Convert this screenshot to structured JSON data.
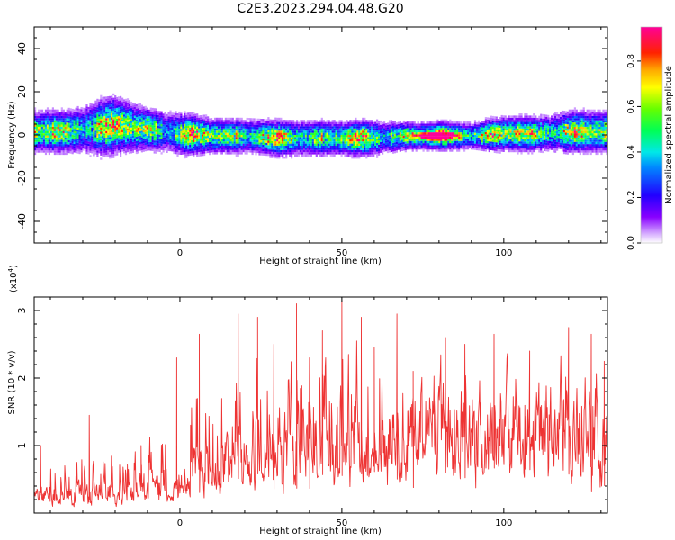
{
  "title": "C2E3.2023.294.04.48.G20",
  "chart_data": [
    {
      "type": "heatmap",
      "xlabel": "Height of straight line (km)",
      "ylabel": "Frequency (Hz)",
      "xlim": [
        -45,
        132
      ],
      "ylim": [
        -50,
        50
      ],
      "xticks": [
        0,
        50,
        100
      ],
      "yticks": [
        -40,
        -20,
        0,
        20,
        40
      ],
      "xtick_labels": [
        "0",
        "50",
        "100"
      ],
      "ytick_labels": [
        "-40",
        "-20",
        "0",
        "20",
        "40"
      ],
      "grid": false,
      "colorbar": {
        "label": "Normalized spectral amplitude",
        "range": [
          0.0,
          0.95
        ],
        "ticks": [
          "0.0",
          "0.2",
          "0.4",
          "0.6",
          "0.8"
        ],
        "tick_values": [
          0.0,
          0.2,
          0.4,
          0.6,
          0.8
        ],
        "colormap": "rainbow (white to purple, blue, cyan, green, yellow, orange, red, magenta)"
      },
      "ridge": {
        "x": [
          -45,
          -35,
          -30,
          -25,
          -20,
          -15,
          -10,
          -5,
          0,
          10,
          20,
          30,
          40,
          50,
          60,
          70,
          80,
          90,
          100,
          110,
          120,
          132
        ],
        "center_frequency": [
          2,
          2,
          3,
          4,
          5,
          4,
          3,
          2,
          1,
          0,
          0,
          -1,
          -1,
          -1,
          -1,
          0,
          0,
          0,
          1,
          1,
          2,
          2
        ],
        "half_width_hz": [
          6,
          6,
          7,
          8,
          8,
          7,
          6,
          6,
          6,
          5,
          5,
          5,
          5,
          5,
          5,
          4,
          4,
          4,
          5,
          5,
          6,
          6
        ]
      },
      "peak": {
        "x": 79,
        "y": 0,
        "amplitude": 0.95
      }
    },
    {
      "type": "line",
      "xlabel": "Height of straight line (km)",
      "ylabel": "SNR (10 * v/v)",
      "scale_note": "(x10",
      "scale_exp": "4",
      "scale_close": ")",
      "xlim": [
        -45,
        132
      ],
      "ylim": [
        0,
        3.2
      ],
      "xticks": [
        0,
        50,
        100
      ],
      "yticks": [
        1,
        2,
        3
      ],
      "xtick_labels": [
        "0",
        "50",
        "100"
      ],
      "ytick_labels": [
        "1",
        "2",
        "3"
      ],
      "grid": false,
      "series": [
        {
          "color": "#ee3333",
          "envelope": {
            "x": [
              -45,
              -30,
              -15,
              -5,
              0,
              10,
              20,
              30,
              40,
              50,
              60,
              70,
              80,
              90,
              100,
              110,
              120,
              132
            ],
            "base": [
              0.25,
              0.3,
              0.35,
              0.45,
              0.55,
              0.7,
              0.9,
              1.0,
              1.1,
              1.1,
              1.1,
              1.2,
              1.3,
              1.25,
              1.2,
              1.2,
              1.25,
              1.0
            ],
            "peak": [
              1.0,
              1.4,
              1.2,
              1.6,
              2.3,
              2.6,
              2.9,
              3.0,
              3.1,
              3.15,
              2.9,
              2.5,
              2.3,
              2.2,
              2.6,
              2.4,
              2.7,
              2.3
            ]
          },
          "spikes": [
            {
              "x": -43,
              "y": 1.0
            },
            {
              "x": -28,
              "y": 1.45
            },
            {
              "x": -12,
              "y": 1.0
            },
            {
              "x": -1,
              "y": 2.3
            },
            {
              "x": 6,
              "y": 2.65
            },
            {
              "x": 18,
              "y": 2.95
            },
            {
              "x": 24,
              "y": 2.9
            },
            {
              "x": 29,
              "y": 2.5
            },
            {
              "x": 36,
              "y": 3.1
            },
            {
              "x": 40,
              "y": 2.3
            },
            {
              "x": 44,
              "y": 2.7
            },
            {
              "x": 50,
              "y": 3.15
            },
            {
              "x": 56,
              "y": 2.9
            },
            {
              "x": 60,
              "y": 2.45
            },
            {
              "x": 67,
              "y": 2.95
            },
            {
              "x": 72,
              "y": 2.1
            },
            {
              "x": 82,
              "y": 2.6
            },
            {
              "x": 88,
              "y": 2.5
            },
            {
              "x": 97,
              "y": 2.65
            },
            {
              "x": 108,
              "y": 2.4
            },
            {
              "x": 120,
              "y": 2.75
            },
            {
              "x": 127,
              "y": 2.65
            },
            {
              "x": 131,
              "y": 2.25
            }
          ]
        }
      ]
    }
  ]
}
